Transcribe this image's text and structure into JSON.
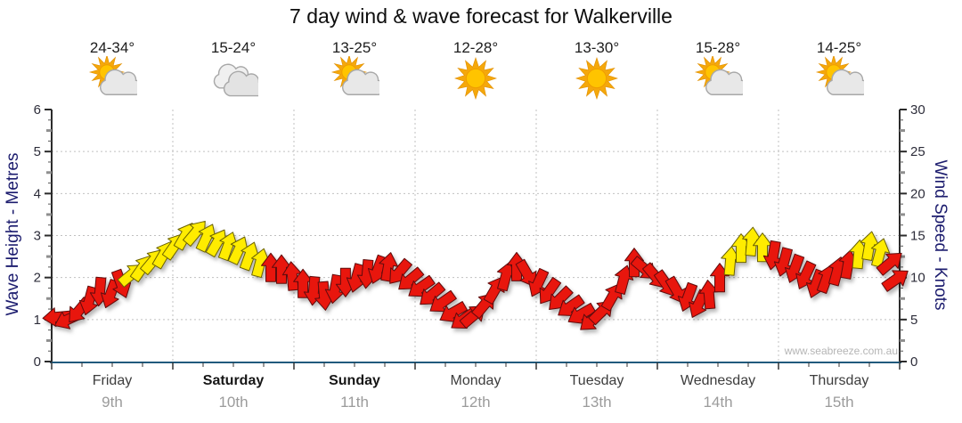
{
  "title": "7 day wind & wave forecast for Walkerville",
  "watermark": "www.seabreeze.com.au",
  "colors": {
    "arrow_red": "#e8120d",
    "arrow_yellow": "#ffec00",
    "arrow_outline_red": "#5f0f0a",
    "arrow_outline_yellow": "#6b6200",
    "axis_bottom_blue": "#215a7d",
    "axis_dark": "#2b2b2b",
    "grid_gray": "#c0c0c0",
    "tick_label": "#2d2d3a",
    "navy_axis_title": "#1c1c6e",
    "date_gray": "#9b9b9b",
    "watermark_gray": "#b5b5b5",
    "sun_core": "#ffc400",
    "sun_rays": "#f5a80b",
    "cloud_fill": "#e8e8e8",
    "cloud_outline": "#a8a8a8"
  },
  "chart_data": {
    "type": "wind-arrows",
    "title": "7 day wind & wave forecast for Walkerville",
    "y_left": {
      "label": "Wave Height - Metres",
      "min": 0,
      "max": 6,
      "step": 1,
      "grid": true
    },
    "y_right": {
      "label": "Wind Speed - Knots",
      "min": 0,
      "max": 30,
      "step": 5
    },
    "x_axis": {
      "unit": "days",
      "n_days": 7,
      "minor_ticks_per_day": 4,
      "day_boundary_grid": true
    },
    "days": [
      {
        "name": "Friday",
        "date": "9th",
        "temp_range": "24-34°",
        "icon": "sun-cloud",
        "bold": false
      },
      {
        "name": "Saturday",
        "date": "10th",
        "temp_range": "15-24°",
        "icon": "clouds",
        "bold": true
      },
      {
        "name": "Sunday",
        "date": "11th",
        "temp_range": "13-25°",
        "icon": "sun-cloud",
        "bold": true
      },
      {
        "name": "Monday",
        "date": "12th",
        "temp_range": "12-28°",
        "icon": "sun",
        "bold": false
      },
      {
        "name": "Tuesday",
        "date": "13th",
        "temp_range": "13-30°",
        "icon": "sun",
        "bold": false
      },
      {
        "name": "Wednesday",
        "date": "14th",
        "temp_range": "15-28°",
        "icon": "sun-cloud",
        "bold": false
      },
      {
        "name": "Thursday",
        "date": "15th",
        "temp_range": "14-25°",
        "icon": "sun-cloud",
        "bold": false
      }
    ],
    "wind_arrows": {
      "format": "[day_offset, speed_knots, direction_deg (0=E, 90=N), strength_color r|y]",
      "points": [
        [
          0.044,
          5.3,
          185,
          "r"
        ],
        [
          0.132,
          5.0,
          205,
          "r"
        ],
        [
          0.221,
          6.0,
          230,
          "r"
        ],
        [
          0.309,
          7.2,
          255,
          "r"
        ],
        [
          0.397,
          8.3,
          265,
          "r"
        ],
        [
          0.485,
          8.0,
          250,
          "r"
        ],
        [
          0.574,
          9.2,
          290,
          "r"
        ],
        [
          0.662,
          10.4,
          40,
          "y"
        ],
        [
          0.75,
          11.2,
          55,
          "y"
        ],
        [
          0.838,
          12.0,
          50,
          "y"
        ],
        [
          0.926,
          12.8,
          60,
          "y"
        ],
        [
          1.015,
          13.8,
          55,
          "y"
        ],
        [
          1.103,
          15.0,
          60,
          "y"
        ],
        [
          1.191,
          15.4,
          50,
          "y"
        ],
        [
          1.279,
          14.8,
          65,
          "y"
        ],
        [
          1.368,
          14.2,
          60,
          "y"
        ],
        [
          1.456,
          13.8,
          70,
          "y"
        ],
        [
          1.544,
          13.3,
          65,
          "y"
        ],
        [
          1.632,
          12.6,
          70,
          "y"
        ],
        [
          1.721,
          11.8,
          75,
          "y"
        ],
        [
          1.809,
          11.2,
          90,
          "r"
        ],
        [
          1.897,
          11.0,
          90,
          "r"
        ],
        [
          1.985,
          10.2,
          95,
          "r"
        ],
        [
          2.074,
          9.3,
          90,
          "r"
        ],
        [
          2.162,
          8.4,
          265,
          "r"
        ],
        [
          2.25,
          7.8,
          275,
          "r"
        ],
        [
          2.338,
          8.6,
          260,
          "r"
        ],
        [
          2.426,
          9.4,
          270,
          "r"
        ],
        [
          2.515,
          9.9,
          255,
          "r"
        ],
        [
          2.603,
          10.4,
          265,
          "r"
        ],
        [
          2.691,
          10.9,
          250,
          "r"
        ],
        [
          2.779,
          11.3,
          80,
          "r"
        ],
        [
          2.868,
          10.6,
          230,
          "r"
        ],
        [
          2.956,
          9.7,
          220,
          "r"
        ],
        [
          3.044,
          8.8,
          215,
          "r"
        ],
        [
          3.132,
          7.9,
          220,
          "r"
        ],
        [
          3.221,
          7.0,
          215,
          "r"
        ],
        [
          3.309,
          5.8,
          210,
          "r"
        ],
        [
          3.397,
          5.0,
          215,
          "r"
        ],
        [
          3.485,
          5.5,
          40,
          "r"
        ],
        [
          3.574,
          6.8,
          50,
          "r"
        ],
        [
          3.662,
          8.6,
          60,
          "r"
        ],
        [
          3.75,
          10.2,
          75,
          "r"
        ],
        [
          3.838,
          11.3,
          90,
          "r"
        ],
        [
          3.926,
          10.4,
          300,
          "r"
        ],
        [
          4.015,
          9.3,
          245,
          "r"
        ],
        [
          4.103,
          8.3,
          235,
          "r"
        ],
        [
          4.191,
          7.4,
          225,
          "r"
        ],
        [
          4.279,
          6.5,
          215,
          "r"
        ],
        [
          4.368,
          5.6,
          210,
          "r"
        ],
        [
          4.456,
          4.9,
          220,
          "r"
        ],
        [
          4.544,
          6.0,
          45,
          "r"
        ],
        [
          4.632,
          7.8,
          60,
          "r"
        ],
        [
          4.721,
          9.8,
          75,
          "r"
        ],
        [
          4.809,
          11.8,
          90,
          "r"
        ],
        [
          4.897,
          11.0,
          320,
          "r"
        ],
        [
          4.985,
          10.1,
          310,
          "r"
        ],
        [
          5.074,
          9.2,
          305,
          "r"
        ],
        [
          5.162,
          8.4,
          300,
          "r"
        ],
        [
          5.25,
          7.6,
          250,
          "r"
        ],
        [
          5.338,
          6.8,
          245,
          "r"
        ],
        [
          5.426,
          8.0,
          95,
          "r"
        ],
        [
          5.515,
          10.0,
          90,
          "r"
        ],
        [
          5.603,
          12.0,
          85,
          "y"
        ],
        [
          5.691,
          13.5,
          90,
          "y"
        ],
        [
          5.779,
          14.3,
          85,
          "y"
        ],
        [
          5.868,
          13.6,
          90,
          "y"
        ],
        [
          5.956,
          12.6,
          260,
          "r"
        ],
        [
          6.044,
          11.8,
          255,
          "r"
        ],
        [
          6.132,
          11.0,
          250,
          "r"
        ],
        [
          6.221,
          10.2,
          245,
          "r"
        ],
        [
          6.309,
          9.2,
          250,
          "r"
        ],
        [
          6.397,
          9.9,
          70,
          "r"
        ],
        [
          6.485,
          10.8,
          75,
          "r"
        ],
        [
          6.574,
          11.6,
          80,
          "r"
        ],
        [
          6.662,
          12.8,
          85,
          "y"
        ],
        [
          6.75,
          13.8,
          80,
          "y"
        ],
        [
          6.838,
          13.0,
          75,
          "y"
        ],
        [
          6.926,
          11.8,
          40,
          "r"
        ],
        [
          6.971,
          9.8,
          35,
          "r"
        ]
      ]
    }
  }
}
